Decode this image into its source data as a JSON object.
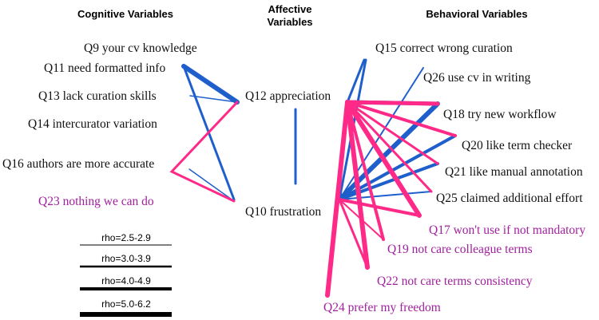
{
  "headers": {
    "cognitive": "Cognitive Variables",
    "affective_1": "Affective",
    "affective_2": "Variables",
    "behavioral": "Behavioral Variables"
  },
  "cognitive_nodes": [
    "Q9 your cv  knowledge",
    "Q11 need formatted info",
    "Q13 lack curation skills",
    "Q14 intercurator variation",
    "Q16 authors are more accurate",
    "Q23 nothing we can do"
  ],
  "affective_nodes": [
    "Q12 appreciation",
    "Q10 frustration"
  ],
  "behavioral_nodes": [
    "Q15 correct wrong curation",
    "Q26 use cv in writing",
    "Q18 try new workflow",
    "Q20 like term checker",
    "Q21 like manual annotation",
    "Q25 claimed additional effort",
    "Q17 won't use if not mandatory",
    "Q19 not care colleague terms",
    "Q22 not care  terms consistency",
    "Q24 prefer my freedom"
  ],
  "legend": [
    "rho=2.5-2.9",
    "rho=3.0-3.9",
    "rho=4.0-4.9",
    "rho=5.0-6.2"
  ]
}
